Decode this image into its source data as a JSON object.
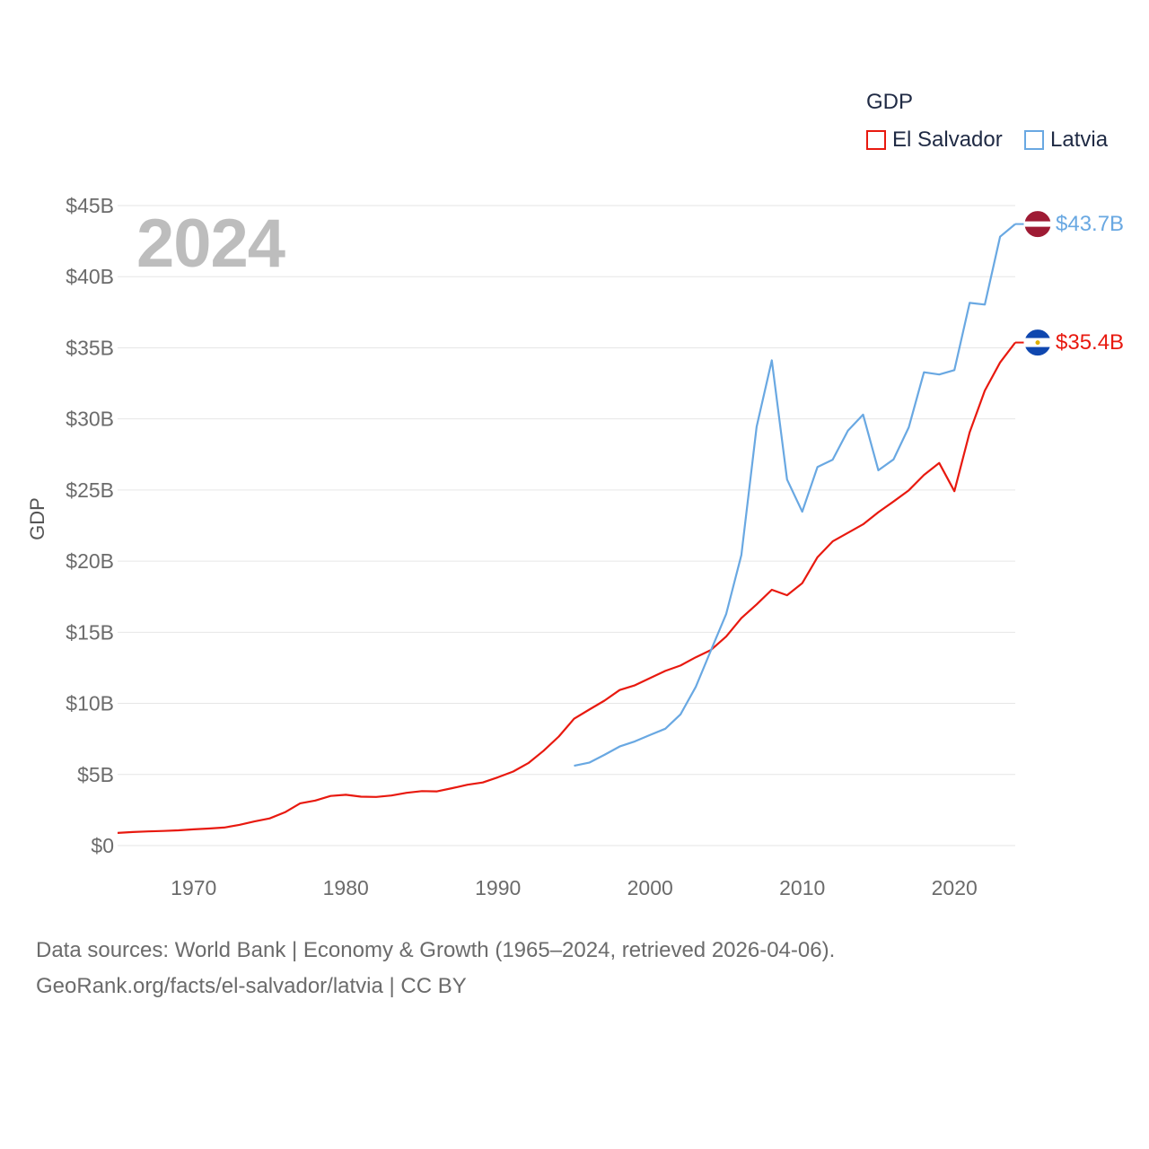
{
  "chart_data": {
    "type": "line",
    "ylabel": "GDP",
    "legend_title": "GDP",
    "legend_position": "top-right",
    "year_label": "2024",
    "xlim": [
      1965,
      2024
    ],
    "ylim": [
      0,
      45
    ],
    "x_ticks": [
      1970,
      1980,
      1990,
      2000,
      2010,
      2020
    ],
    "y_ticks": [
      {
        "value": 0,
        "label": "$0"
      },
      {
        "value": 5,
        "label": "$5B"
      },
      {
        "value": 10,
        "label": "$10B"
      },
      {
        "value": 15,
        "label": "$15B"
      },
      {
        "value": 20,
        "label": "$20B"
      },
      {
        "value": 25,
        "label": "$25B"
      },
      {
        "value": 30,
        "label": "$30B"
      },
      {
        "value": 35,
        "label": "$35B"
      },
      {
        "value": 40,
        "label": "$40B"
      },
      {
        "value": 45,
        "label": "$45B"
      }
    ],
    "grid": true,
    "series": [
      {
        "name": "El Salvador",
        "color": "#e8190f",
        "end_label": "$35.4B",
        "flag": "el-salvador-flag",
        "x": [
          1965,
          1966,
          1967,
          1968,
          1969,
          1970,
          1971,
          1972,
          1973,
          1974,
          1975,
          1976,
          1977,
          1978,
          1979,
          1980,
          1981,
          1982,
          1983,
          1984,
          1985,
          1986,
          1987,
          1988,
          1989,
          1990,
          1991,
          1992,
          1993,
          1994,
          1995,
          1996,
          1997,
          1998,
          1999,
          2000,
          2001,
          2002,
          2003,
          2004,
          2005,
          2006,
          2007,
          2008,
          2009,
          2010,
          2011,
          2012,
          2013,
          2014,
          2015,
          2016,
          2017,
          2018,
          2019,
          2020,
          2021,
          2022,
          2023,
          2024
        ],
        "values": [
          0.89,
          0.95,
          1.0,
          1.03,
          1.07,
          1.14,
          1.2,
          1.27,
          1.46,
          1.7,
          1.91,
          2.34,
          2.97,
          3.17,
          3.49,
          3.57,
          3.44,
          3.42,
          3.52,
          3.71,
          3.83,
          3.81,
          4.04,
          4.28,
          4.44,
          4.8,
          5.21,
          5.8,
          6.67,
          7.67,
          8.92,
          9.56,
          10.19,
          10.94,
          11.27,
          11.78,
          12.28,
          12.66,
          13.24,
          13.75,
          14.7,
          15.99,
          16.96,
          17.99,
          17.6,
          18.45,
          20.28,
          21.39,
          21.99,
          22.59,
          23.44,
          24.19,
          24.98,
          26.06,
          26.9,
          24.92,
          29.06,
          31.99,
          33.97,
          35.37
        ]
      },
      {
        "name": "Latvia",
        "color": "#69a8e2",
        "end_label": "$43.7B",
        "flag": "latvia-flag",
        "x": [
          1995,
          1996,
          1997,
          1998,
          1999,
          2000,
          2001,
          2002,
          2003,
          2004,
          2005,
          2006,
          2007,
          2008,
          2009,
          2010,
          2011,
          2012,
          2013,
          2014,
          2015,
          2016,
          2017,
          2018,
          2019,
          2020,
          2021,
          2022,
          2023,
          2024
        ],
        "values": [
          5.61,
          5.83,
          6.38,
          6.97,
          7.33,
          7.78,
          8.22,
          9.23,
          11.16,
          13.73,
          16.29,
          20.43,
          29.45,
          34.12,
          25.74,
          23.48,
          26.62,
          27.13,
          29.18,
          30.3,
          26.39,
          27.15,
          29.41,
          33.28,
          33.12,
          33.43,
          38.16,
          38.04,
          42.81,
          43.7
        ]
      }
    ]
  },
  "source_line_1": "Data sources: World Bank | Economy & Growth (1965–2024, retrieved 2026-04-06).",
  "source_line_2": "GeoRank.org/facts/el-salvador/latvia | CC BY"
}
